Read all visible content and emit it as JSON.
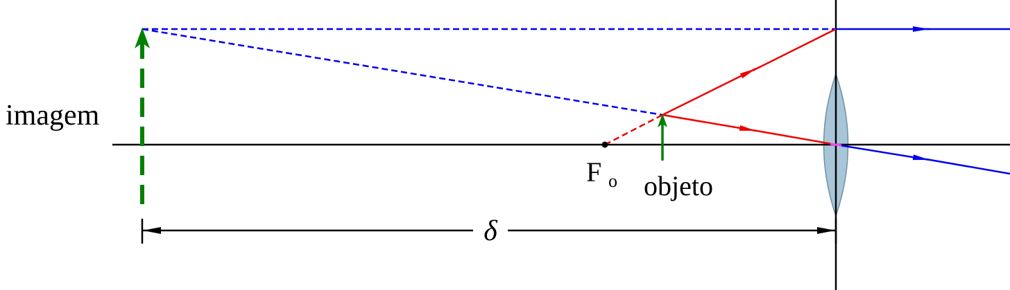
{
  "labels": {
    "image": "imagem",
    "focal_point": "F",
    "focal_subscript": "o",
    "object": "objeto",
    "distance": "δ"
  }
}
